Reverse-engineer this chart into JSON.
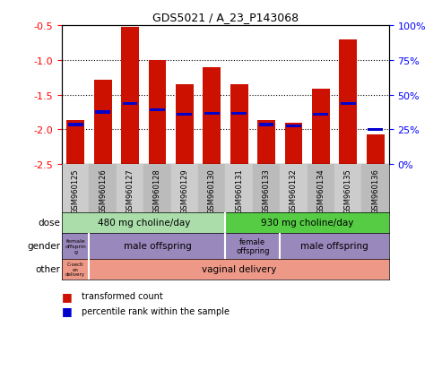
{
  "title": "GDS5021 / A_23_P143068",
  "samples": [
    "GSM960125",
    "GSM960126",
    "GSM960127",
    "GSM960128",
    "GSM960129",
    "GSM960130",
    "GSM960131",
    "GSM960133",
    "GSM960132",
    "GSM960134",
    "GSM960135",
    "GSM960136"
  ],
  "bar_tops": [
    -1.87,
    -1.28,
    -0.52,
    -1.0,
    -1.35,
    -1.1,
    -1.35,
    -1.87,
    -1.9,
    -1.42,
    -0.7,
    -2.07
  ],
  "bar_bottoms": [
    -2.5,
    -2.5,
    -2.5,
    -2.5,
    -2.5,
    -2.5,
    -2.5,
    -2.5,
    -2.5,
    -2.5,
    -2.5,
    -2.5
  ],
  "blue_y": [
    -1.93,
    -1.75,
    -1.63,
    -1.72,
    -1.78,
    -1.77,
    -1.77,
    -1.93,
    -1.95,
    -1.78,
    -1.63,
    -2.0
  ],
  "ylim": [
    -2.5,
    -0.5
  ],
  "yticks_left": [
    -2.5,
    -2.0,
    -1.5,
    -1.0,
    -0.5
  ],
  "yticks_right_vals": [
    0,
    25,
    50,
    75,
    100
  ],
  "bar_color": "#cc1100",
  "blue_color": "#0000cc",
  "dose_label_0": "480 mg choline/day",
  "dose_label_1": "930 mg choline/day",
  "dose_color_0": "#aaddaa",
  "dose_color_1": "#55cc44",
  "gender_color": "#9988bb",
  "other_color_small": "#ee9988",
  "other_color_large": "#ee9988",
  "legend_items": [
    {
      "color": "#cc1100",
      "label": "transformed count"
    },
    {
      "color": "#0000cc",
      "label": "percentile rank within the sample"
    }
  ]
}
